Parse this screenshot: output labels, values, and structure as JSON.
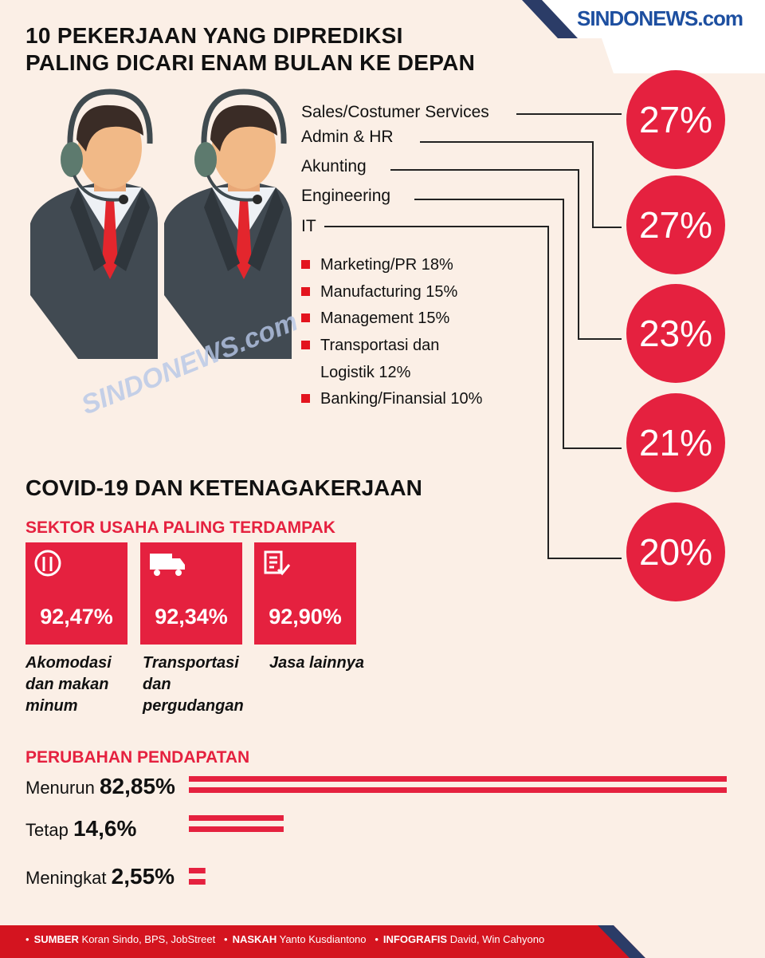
{
  "logo": "SINDONEWS.com",
  "watermark": "SINDONEWS.com",
  "title": [
    "10 PEKERJAAN YANG DIPREDIKSI",
    "PALING DICARI ENAM BULAN KE DEPAN"
  ],
  "top_jobs": [
    {
      "name": "Sales/Costumer Services",
      "percent": "27%"
    },
    {
      "name": "Admin & HR",
      "percent": "27%"
    },
    {
      "name": "Akunting",
      "percent": "23%"
    },
    {
      "name": "Engineering",
      "percent": "21%"
    },
    {
      "name": "IT",
      "percent": "20%"
    }
  ],
  "other_jobs": [
    "Marketing/PR 18%",
    "Manufacturing 15%",
    "Management 15%",
    "Transportasi dan Logistik 12%",
    "Banking/Finansial 10%"
  ],
  "covid_title": "COVID-19 DAN KETENAGAKERJAAN",
  "sectors": {
    "title": "SEKTOR USAHA PALING TERDAMPAK",
    "items": [
      {
        "percent": "92,47%",
        "label": "Akomodasi dan makan minum"
      },
      {
        "percent": "92,34%",
        "label": "Transportasi dan pergudangan"
      },
      {
        "percent": "92,90%",
        "label": "Jasa lainnya"
      }
    ]
  },
  "income": {
    "title": "PERUBAHAN PENDAPATAN",
    "items": [
      {
        "name": "Menurun",
        "value": 82.85,
        "label": "82,85%"
      },
      {
        "name": "Tetap",
        "value": 14.6,
        "label": "14,6%"
      },
      {
        "name": "Meningkat",
        "value": 2.55,
        "label": "2,55%"
      }
    ]
  },
  "credits": [
    {
      "label": "SUMBER",
      "text": "Koran Sindo, BPS, JobStreet"
    },
    {
      "label": "NASKAH",
      "text": "Yanto Kusdiantono"
    },
    {
      "label": "INFOGRAFIS",
      "text": "David, Win Cahyono"
    }
  ]
}
